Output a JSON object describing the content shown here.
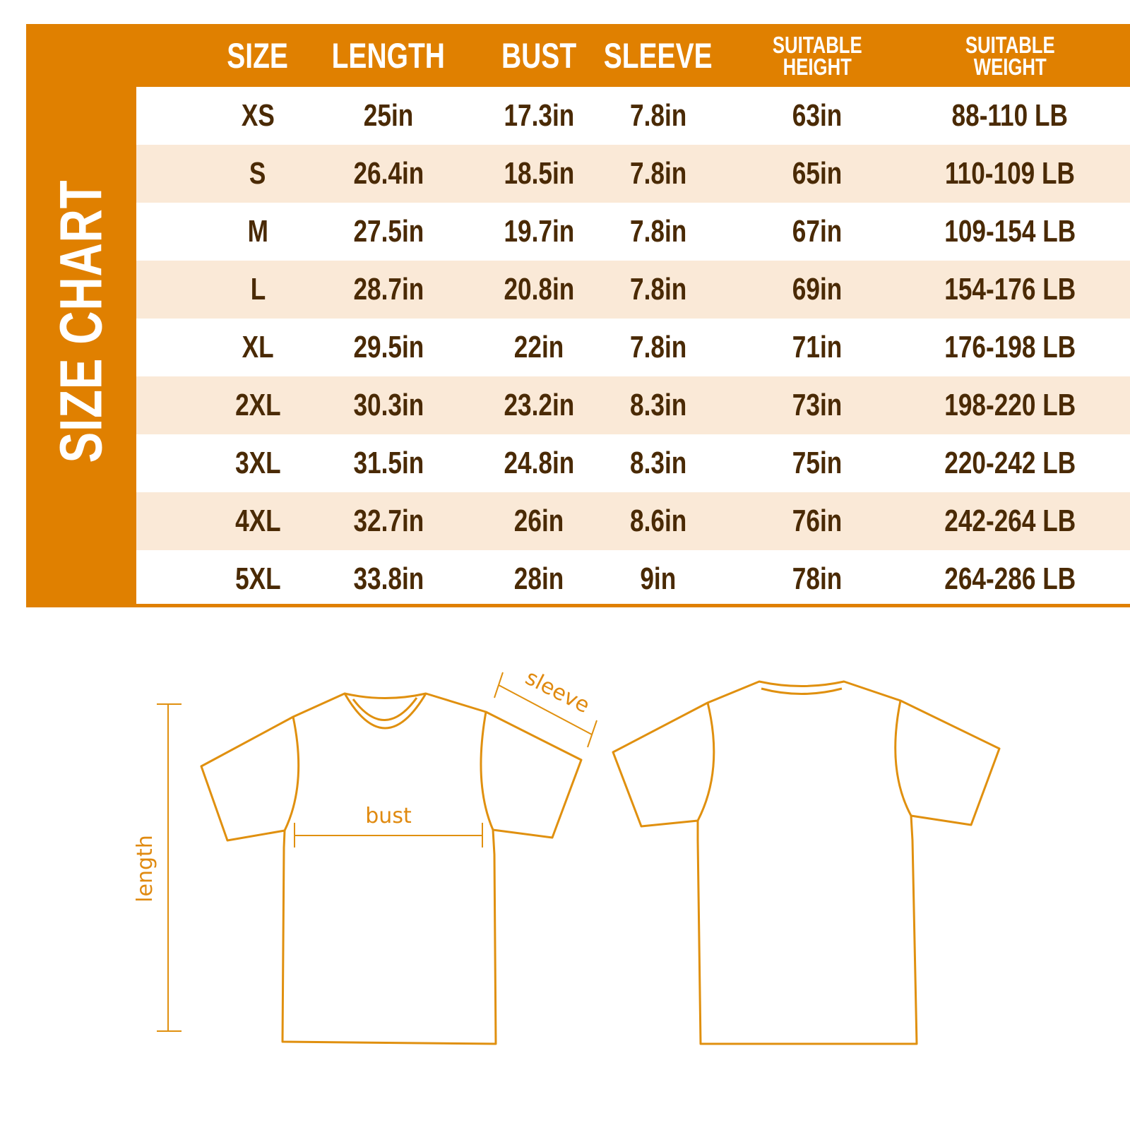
{
  "title": "SIZE CHART",
  "colors": {
    "accent": "#e08000",
    "stripe": "#fae9d7",
    "text": "#4a2a05",
    "outline": "#e08a10"
  },
  "columns": [
    {
      "key": "size",
      "lines": [
        "SIZE"
      ]
    },
    {
      "key": "length",
      "lines": [
        "LENGTH"
      ]
    },
    {
      "key": "bust",
      "lines": [
        "BUST"
      ]
    },
    {
      "key": "sleeve",
      "lines": [
        "SLEEVE"
      ]
    },
    {
      "key": "height",
      "lines": [
        "SUITABLE",
        "HEIGHT"
      ]
    },
    {
      "key": "weight",
      "lines": [
        "SUITABLE",
        "WEIGHT"
      ]
    }
  ],
  "rows": [
    [
      "XS",
      "25in",
      "17.3in",
      "7.8in",
      "63in",
      "88-110 LB"
    ],
    [
      "S",
      "26.4in",
      "18.5in",
      "7.8in",
      "65in",
      "110-109 LB"
    ],
    [
      "M",
      "27.5in",
      "19.7in",
      "7.8in",
      "67in",
      "109-154 LB"
    ],
    [
      "L",
      "28.7in",
      "20.8in",
      "7.8in",
      "69in",
      "154-176 LB"
    ],
    [
      "XL",
      "29.5in",
      "22in",
      "7.8in",
      "71in",
      "176-198 LB"
    ],
    [
      "2XL",
      "30.3in",
      "23.2in",
      "8.3in",
      "73in",
      "198-220 LB"
    ],
    [
      "3XL",
      "31.5in",
      "24.8in",
      "8.3in",
      "75in",
      "220-242 LB"
    ],
    [
      "4XL",
      "32.7in",
      "26in",
      "8.6in",
      "76in",
      "242-264 LB"
    ],
    [
      "5XL",
      "33.8in",
      "28in",
      "9in",
      "78in",
      "264-286 LB"
    ]
  ],
  "diagram": {
    "sleeve_label": "sleeve",
    "bust_label": "bust",
    "length_label": "length"
  }
}
